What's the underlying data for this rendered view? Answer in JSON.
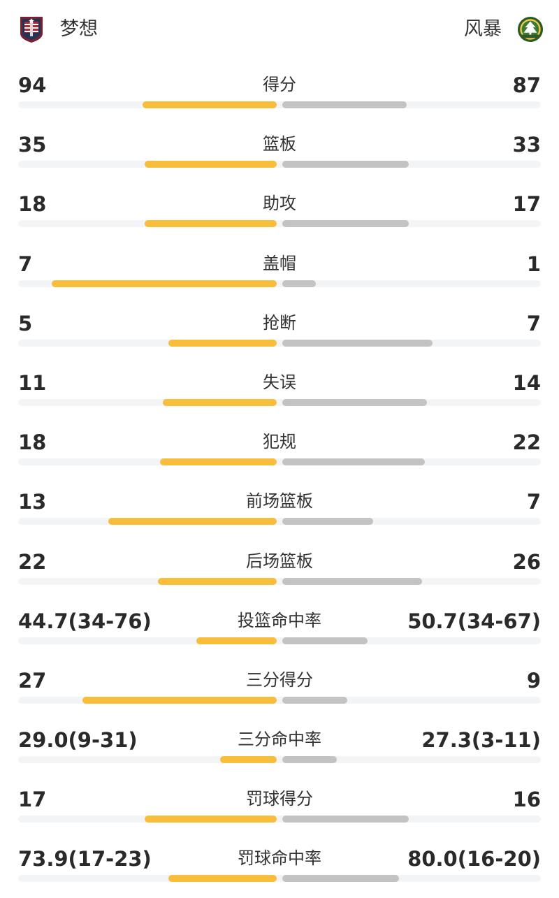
{
  "teams": {
    "home": {
      "name": "梦想",
      "logo_icon": "dream-logo-icon",
      "color": "#f8bd3a"
    },
    "away": {
      "name": "风暴",
      "logo_icon": "storm-logo-icon",
      "color": "#c3c3c3"
    }
  },
  "colors": {
    "home_bar": "#f8bd3a",
    "away_bar": "#c3c3c3",
    "track": "#f3f4f6"
  },
  "stats": [
    {
      "label": "得分",
      "home": "94",
      "away": "87",
      "home_share": 0.52,
      "away_share": 0.48
    },
    {
      "label": "篮板",
      "home": "35",
      "away": "33",
      "home_share": 0.51,
      "away_share": 0.49
    },
    {
      "label": "助攻",
      "home": "18",
      "away": "17",
      "home_share": 0.51,
      "away_share": 0.49
    },
    {
      "label": "盖帽",
      "home": "7",
      "away": "1",
      "home_share": 0.87,
      "away_share": 0.13
    },
    {
      "label": "抢断",
      "home": "5",
      "away": "7",
      "home_share": 0.42,
      "away_share": 0.58
    },
    {
      "label": "失误",
      "home": "11",
      "away": "14",
      "home_share": 0.44,
      "away_share": 0.56
    },
    {
      "label": "犯规",
      "home": "18",
      "away": "22",
      "home_share": 0.45,
      "away_share": 0.55
    },
    {
      "label": "前场篮板",
      "home": "13",
      "away": "7",
      "home_share": 0.65,
      "away_share": 0.35
    },
    {
      "label": "后场篮板",
      "home": "22",
      "away": "26",
      "home_share": 0.46,
      "away_share": 0.54
    },
    {
      "label": "投篮命中率",
      "home": "44.7(34-76)",
      "away": "50.7(34-67)",
      "home_share": 0.31,
      "away_share": 0.33
    },
    {
      "label": "三分得分",
      "home": "27",
      "away": "9",
      "home_share": 0.75,
      "away_share": 0.25
    },
    {
      "label": "三分命中率",
      "home": "29.0(9-31)",
      "away": "27.3(3-11)",
      "home_share": 0.22,
      "away_share": 0.21
    },
    {
      "label": "罚球得分",
      "home": "17",
      "away": "16",
      "home_share": 0.51,
      "away_share": 0.49
    },
    {
      "label": "罚球命中率",
      "home": "73.9(17-23)",
      "away": "80.0(16-20)",
      "home_share": 0.42,
      "away_share": 0.45
    }
  ]
}
